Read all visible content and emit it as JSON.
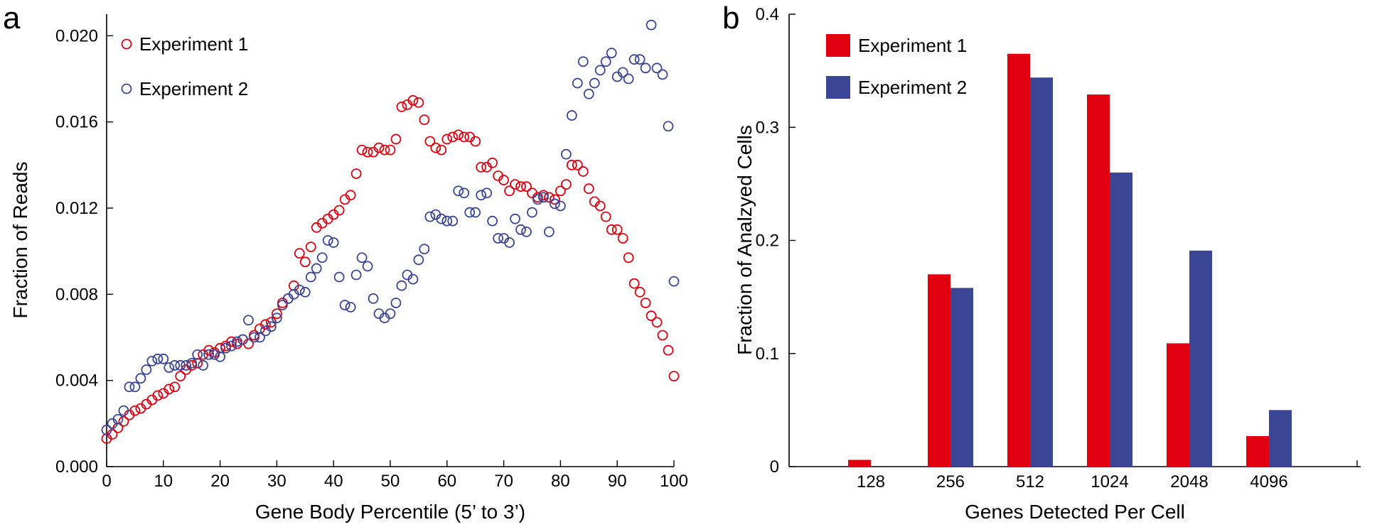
{
  "colors": {
    "experiment1": "#e0000f",
    "experiment2": "#3a4596"
  },
  "chart_data": [
    {
      "panel": "a",
      "type": "scatter",
      "xlabel": "Gene Body Percentile (5’ to 3’)",
      "ylabel": "Fraction of Reads",
      "xlim": [
        0,
        100
      ],
      "ylim": [
        0,
        0.021
      ],
      "xticks": [
        0,
        10,
        20,
        30,
        40,
        50,
        60,
        70,
        80,
        90,
        100
      ],
      "yticks": [
        0.0,
        0.004,
        0.008,
        0.012,
        0.016,
        0.02
      ],
      "ytick_labels": [
        "0.000",
        "0.004",
        "0.008",
        "0.012",
        "0.016",
        "0.020"
      ],
      "legend_position": "top-left",
      "series": [
        {
          "name": "Experiment 1",
          "x": [
            0,
            1,
            2,
            3,
            4,
            5,
            6,
            7,
            8,
            9,
            10,
            11,
            12,
            13,
            14,
            15,
            16,
            17,
            18,
            19,
            20,
            21,
            22,
            23,
            24,
            25,
            26,
            27,
            28,
            29,
            30,
            31,
            32,
            33,
            34,
            35,
            36,
            37,
            38,
            39,
            40,
            41,
            42,
            43,
            44,
            45,
            46,
            47,
            48,
            49,
            50,
            51,
            52,
            53,
            54,
            55,
            56,
            57,
            58,
            59,
            60,
            61,
            62,
            63,
            64,
            65,
            66,
            67,
            68,
            69,
            70,
            71,
            72,
            73,
            74,
            75,
            76,
            77,
            78,
            79,
            80,
            81,
            82,
            83,
            84,
            85,
            86,
            87,
            88,
            89,
            90,
            91,
            92,
            93,
            94,
            95,
            96,
            97,
            98,
            99,
            100
          ],
          "y": [
            0.0013,
            0.0015,
            0.0018,
            0.0021,
            0.0024,
            0.0026,
            0.0027,
            0.0029,
            0.0031,
            0.0033,
            0.0034,
            0.0036,
            0.0037,
            0.0042,
            0.0045,
            0.0047,
            0.0048,
            0.0052,
            0.0054,
            0.0053,
            0.0055,
            0.0056,
            0.0058,
            0.0057,
            0.0059,
            0.0057,
            0.0061,
            0.0064,
            0.0066,
            0.0067,
            0.0071,
            0.0076,
            0.0078,
            0.0084,
            0.0099,
            0.0095,
            0.0102,
            0.0111,
            0.0113,
            0.0115,
            0.0117,
            0.0119,
            0.0124,
            0.0126,
            0.0136,
            0.0147,
            0.0146,
            0.0146,
            0.0148,
            0.0147,
            0.0147,
            0.0152,
            0.0167,
            0.0168,
            0.017,
            0.0169,
            0.0161,
            0.0151,
            0.0148,
            0.0147,
            0.0152,
            0.0153,
            0.0154,
            0.0153,
            0.0153,
            0.0151,
            0.0139,
            0.0139,
            0.0141,
            0.0135,
            0.0133,
            0.0128,
            0.0131,
            0.013,
            0.013,
            0.0127,
            0.0125,
            0.0126,
            0.0125,
            0.0124,
            0.0128,
            0.0131,
            0.014,
            0.014,
            0.0137,
            0.0129,
            0.0123,
            0.0121,
            0.0116,
            0.011,
            0.011,
            0.0106,
            0.0097,
            0.0085,
            0.0081,
            0.0076,
            0.007,
            0.0067,
            0.0061,
            0.0054,
            0.0042
          ]
        },
        {
          "name": "Experiment 2",
          "x": [
            0,
            1,
            2,
            3,
            4,
            5,
            6,
            7,
            8,
            9,
            10,
            11,
            12,
            13,
            14,
            15,
            16,
            17,
            18,
            19,
            20,
            21,
            22,
            23,
            24,
            25,
            26,
            27,
            28,
            29,
            30,
            31,
            32,
            33,
            34,
            35,
            36,
            37,
            38,
            39,
            40,
            41,
            42,
            43,
            44,
            45,
            46,
            47,
            48,
            49,
            50,
            51,
            52,
            53,
            54,
            55,
            56,
            57,
            58,
            59,
            60,
            61,
            62,
            63,
            64,
            65,
            66,
            67,
            68,
            69,
            70,
            71,
            72,
            73,
            74,
            75,
            76,
            77,
            78,
            79,
            80,
            81,
            82,
            83,
            84,
            85,
            86,
            87,
            88,
            89,
            90,
            91,
            92,
            93,
            94,
            95,
            96,
            97,
            98,
            99,
            100
          ],
          "y": [
            0.0017,
            0.002,
            0.0022,
            0.0026,
            0.0037,
            0.0037,
            0.0041,
            0.0045,
            0.0049,
            0.005,
            0.005,
            0.0046,
            0.0047,
            0.0047,
            0.0047,
            0.0048,
            0.0052,
            0.0047,
            0.0052,
            0.0052,
            0.0051,
            0.0055,
            0.0056,
            0.0058,
            0.0059,
            0.0068,
            0.006,
            0.006,
            0.0063,
            0.0065,
            0.0069,
            0.0075,
            0.0078,
            0.008,
            0.0082,
            0.0081,
            0.0088,
            0.0092,
            0.0097,
            0.0105,
            0.0104,
            0.0088,
            0.0075,
            0.0074,
            0.0089,
            0.0097,
            0.0093,
            0.0078,
            0.0071,
            0.0069,
            0.0071,
            0.0076,
            0.0084,
            0.0089,
            0.0087,
            0.0096,
            0.0101,
            0.0116,
            0.0117,
            0.0115,
            0.0114,
            0.0114,
            0.0128,
            0.0127,
            0.0118,
            0.0118,
            0.0126,
            0.0127,
            0.0114,
            0.0106,
            0.0106,
            0.0104,
            0.0115,
            0.011,
            0.0109,
            0.0118,
            0.0124,
            0.0125,
            0.0109,
            0.0122,
            0.0121,
            0.0145,
            0.0163,
            0.0178,
            0.0188,
            0.0173,
            0.0178,
            0.0184,
            0.0188,
            0.0192,
            0.0181,
            0.0183,
            0.018,
            0.0189,
            0.0189,
            0.0185,
            0.0205,
            0.0185,
            0.0182,
            0.0158,
            0.0086
          ]
        }
      ]
    },
    {
      "panel": "b",
      "type": "bar",
      "xlabel": "Genes Detected Per Cell",
      "ylabel": "Fraction of Analzyed Cells",
      "categories": [
        "128",
        "256",
        "512",
        "1024",
        "2048",
        "4096"
      ],
      "ylim": [
        0,
        0.4
      ],
      "yticks": [
        0,
        0.1,
        0.2,
        0.3,
        0.4
      ],
      "ytick_labels": [
        "0",
        "0.1",
        "0.2",
        "0.3",
        "0.4"
      ],
      "legend_position": "top-left",
      "series": [
        {
          "name": "Experiment 1",
          "values": [
            0.006,
            0.17,
            0.365,
            0.329,
            0.109,
            0.027
          ]
        },
        {
          "name": "Experiment 2",
          "values": [
            0.0,
            0.158,
            0.344,
            0.26,
            0.191,
            0.05
          ]
        }
      ]
    }
  ]
}
